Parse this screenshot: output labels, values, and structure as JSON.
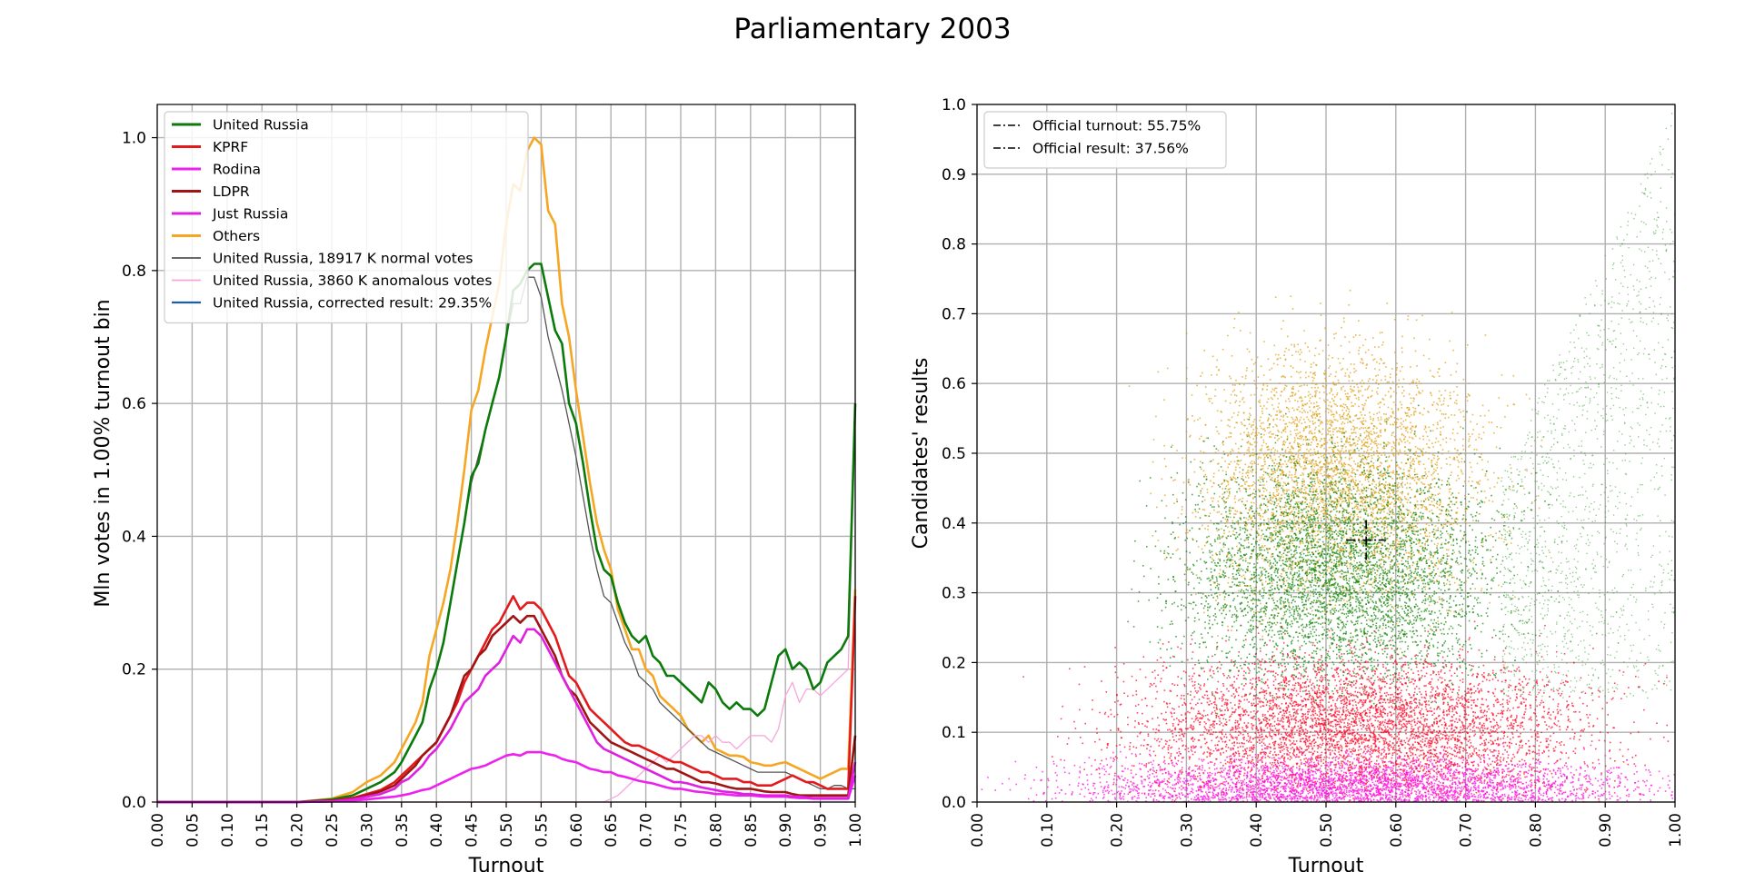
{
  "title": "Parliamentary 2003",
  "chart_data": [
    {
      "type": "line",
      "xlabel": "Turnout",
      "ylabel": "Mln votes in 1.00% turnout bin",
      "xlim": [
        0,
        1
      ],
      "ylim": [
        0,
        1.05
      ],
      "x_ticks": [
        "0.00",
        "0.05",
        "0.10",
        "0.15",
        "0.20",
        "0.25",
        "0.30",
        "0.35",
        "0.40",
        "0.45",
        "0.50",
        "0.55",
        "0.60",
        "0.65",
        "0.70",
        "0.75",
        "0.80",
        "0.85",
        "0.90",
        "0.95",
        "1.00"
      ],
      "y_ticks": [
        "0.0",
        "0.2",
        "0.4",
        "0.6",
        "0.8",
        "1.0"
      ],
      "x": [
        0.0,
        0.05,
        0.1,
        0.15,
        0.2,
        0.25,
        0.28,
        0.3,
        0.32,
        0.34,
        0.35,
        0.36,
        0.37,
        0.38,
        0.39,
        0.4,
        0.41,
        0.42,
        0.43,
        0.44,
        0.45,
        0.46,
        0.47,
        0.48,
        0.49,
        0.5,
        0.51,
        0.52,
        0.53,
        0.54,
        0.55,
        0.56,
        0.57,
        0.58,
        0.59,
        0.6,
        0.61,
        0.62,
        0.63,
        0.64,
        0.65,
        0.66,
        0.67,
        0.68,
        0.69,
        0.7,
        0.71,
        0.72,
        0.73,
        0.74,
        0.75,
        0.76,
        0.77,
        0.78,
        0.79,
        0.8,
        0.81,
        0.82,
        0.83,
        0.84,
        0.85,
        0.86,
        0.87,
        0.88,
        0.89,
        0.9,
        0.91,
        0.92,
        0.93,
        0.94,
        0.95,
        0.96,
        0.97,
        0.98,
        0.99,
        1.0
      ],
      "series": [
        {
          "name": "Others",
          "color": "#f5a623",
          "width": 2.6,
          "values": [
            0,
            0,
            0,
            0,
            0,
            0.005,
            0.015,
            0.03,
            0.04,
            0.06,
            0.08,
            0.1,
            0.12,
            0.15,
            0.22,
            0.26,
            0.3,
            0.35,
            0.42,
            0.5,
            0.59,
            0.62,
            0.68,
            0.73,
            0.78,
            0.87,
            0.93,
            0.92,
            0.98,
            1.0,
            0.99,
            0.89,
            0.87,
            0.75,
            0.7,
            0.62,
            0.55,
            0.48,
            0.42,
            0.38,
            0.35,
            0.29,
            0.26,
            0.23,
            0.23,
            0.2,
            0.19,
            0.16,
            0.15,
            0.14,
            0.13,
            0.11,
            0.1,
            0.09,
            0.1,
            0.08,
            0.075,
            0.07,
            0.07,
            0.068,
            0.06,
            0.058,
            0.055,
            0.055,
            0.058,
            0.06,
            0.055,
            0.05,
            0.045,
            0.04,
            0.035,
            0.04,
            0.045,
            0.05,
            0.05,
            0.32
          ]
        },
        {
          "name": "United Russia, 18917 K normal votes",
          "color": "#555555",
          "width": 1.3,
          "values": [
            0,
            0,
            0,
            0,
            0,
            0.004,
            0.01,
            0.02,
            0.03,
            0.045,
            0.06,
            0.08,
            0.1,
            0.12,
            0.17,
            0.2,
            0.24,
            0.3,
            0.36,
            0.42,
            0.48,
            0.52,
            0.56,
            0.6,
            0.64,
            0.7,
            0.75,
            0.75,
            0.79,
            0.79,
            0.76,
            0.7,
            0.66,
            0.62,
            0.57,
            0.52,
            0.46,
            0.4,
            0.35,
            0.31,
            0.3,
            0.27,
            0.24,
            0.22,
            0.19,
            0.18,
            0.17,
            0.15,
            0.14,
            0.13,
            0.12,
            0.11,
            0.1,
            0.09,
            0.08,
            0.075,
            0.07,
            0.065,
            0.06,
            0.055,
            0.05,
            0.045,
            0.045,
            0.045,
            0.045,
            0.045,
            0.04,
            0.035,
            0.03,
            0.025,
            0.02,
            0.02,
            0.025,
            0.025,
            0.02,
            0.02
          ]
        },
        {
          "name": "United Russia, 3860 K anomalous votes",
          "color": "#f7a6d9",
          "width": 1.3,
          "values": [
            0,
            0,
            0,
            0,
            0,
            0,
            0,
            0,
            0,
            0,
            0,
            0,
            0,
            0,
            0,
            0,
            0,
            0,
            0,
            0,
            0,
            0,
            0,
            0,
            0,
            0,
            0,
            0,
            0,
            0,
            0,
            0,
            0,
            0,
            0,
            0,
            0,
            0,
            0,
            0,
            0.005,
            0.01,
            0.02,
            0.03,
            0.04,
            0.05,
            0.06,
            0.07,
            0.06,
            0.07,
            0.08,
            0.09,
            0.1,
            0.1,
            0.09,
            0.1,
            0.09,
            0.09,
            0.08,
            0.09,
            0.1,
            0.1,
            0.1,
            0.09,
            0.11,
            0.16,
            0.18,
            0.15,
            0.17,
            0.17,
            0.16,
            0.17,
            0.18,
            0.19,
            0.2,
            0.58
          ]
        },
        {
          "name": "United Russia",
          "color": "#0b7a0b",
          "width": 2.6,
          "values": [
            0,
            0,
            0,
            0,
            0,
            0.004,
            0.01,
            0.02,
            0.03,
            0.045,
            0.06,
            0.08,
            0.1,
            0.12,
            0.17,
            0.2,
            0.24,
            0.3,
            0.36,
            0.42,
            0.49,
            0.51,
            0.56,
            0.6,
            0.64,
            0.7,
            0.77,
            0.78,
            0.8,
            0.81,
            0.81,
            0.76,
            0.71,
            0.69,
            0.6,
            0.57,
            0.51,
            0.44,
            0.38,
            0.35,
            0.34,
            0.3,
            0.27,
            0.25,
            0.24,
            0.25,
            0.22,
            0.21,
            0.19,
            0.19,
            0.18,
            0.17,
            0.16,
            0.15,
            0.18,
            0.17,
            0.15,
            0.14,
            0.15,
            0.14,
            0.14,
            0.13,
            0.14,
            0.18,
            0.22,
            0.23,
            0.2,
            0.21,
            0.2,
            0.17,
            0.18,
            0.21,
            0.22,
            0.23,
            0.25,
            0.6
          ]
        },
        {
          "name": "KPRF",
          "color": "#e31a1c",
          "width": 2.6,
          "values": [
            0,
            0,
            0,
            0,
            0,
            0.002,
            0.006,
            0.012,
            0.018,
            0.03,
            0.04,
            0.05,
            0.06,
            0.07,
            0.08,
            0.09,
            0.11,
            0.13,
            0.15,
            0.18,
            0.2,
            0.22,
            0.24,
            0.26,
            0.27,
            0.29,
            0.31,
            0.29,
            0.3,
            0.3,
            0.29,
            0.27,
            0.25,
            0.22,
            0.19,
            0.18,
            0.16,
            0.14,
            0.13,
            0.12,
            0.11,
            0.1,
            0.09,
            0.085,
            0.085,
            0.08,
            0.075,
            0.07,
            0.065,
            0.06,
            0.06,
            0.055,
            0.05,
            0.045,
            0.045,
            0.04,
            0.035,
            0.035,
            0.035,
            0.03,
            0.03,
            0.025,
            0.025,
            0.025,
            0.03,
            0.035,
            0.04,
            0.035,
            0.03,
            0.03,
            0.025,
            0.02,
            0.02,
            0.02,
            0.02,
            0.31
          ]
        },
        {
          "name": "LDPR",
          "color": "#a01414",
          "width": 2.6,
          "values": [
            0,
            0,
            0,
            0,
            0,
            0.002,
            0.005,
            0.01,
            0.016,
            0.025,
            0.035,
            0.045,
            0.055,
            0.07,
            0.08,
            0.09,
            0.11,
            0.13,
            0.16,
            0.19,
            0.2,
            0.22,
            0.23,
            0.25,
            0.26,
            0.27,
            0.28,
            0.27,
            0.28,
            0.28,
            0.26,
            0.24,
            0.22,
            0.19,
            0.17,
            0.16,
            0.14,
            0.12,
            0.11,
            0.1,
            0.09,
            0.085,
            0.08,
            0.075,
            0.07,
            0.065,
            0.06,
            0.055,
            0.05,
            0.05,
            0.045,
            0.04,
            0.035,
            0.03,
            0.03,
            0.028,
            0.025,
            0.022,
            0.02,
            0.02,
            0.02,
            0.018,
            0.016,
            0.015,
            0.015,
            0.015,
            0.012,
            0.01,
            0.01,
            0.01,
            0.01,
            0.01,
            0.01,
            0.01,
            0.01,
            0.1
          ]
        },
        {
          "name": "Rodina",
          "color": "#ee22ee",
          "width": 2.6,
          "values": [
            0,
            0,
            0,
            0,
            0,
            0.001,
            0.002,
            0.004,
            0.006,
            0.008,
            0.01,
            0.012,
            0.015,
            0.018,
            0.02,
            0.025,
            0.03,
            0.035,
            0.04,
            0.045,
            0.05,
            0.052,
            0.055,
            0.06,
            0.065,
            0.07,
            0.072,
            0.07,
            0.075,
            0.075,
            0.075,
            0.072,
            0.07,
            0.065,
            0.062,
            0.06,
            0.055,
            0.05,
            0.048,
            0.045,
            0.045,
            0.04,
            0.038,
            0.035,
            0.032,
            0.03,
            0.028,
            0.025,
            0.022,
            0.02,
            0.02,
            0.018,
            0.016,
            0.015,
            0.014,
            0.012,
            0.012,
            0.011,
            0.01,
            0.01,
            0.01,
            0.009,
            0.008,
            0.008,
            0.008,
            0.008,
            0.007,
            0.006,
            0.006,
            0.005,
            0.005,
            0.005,
            0.005,
            0.005,
            0.005,
            0.04
          ]
        },
        {
          "name": "Just Russia",
          "color": "#e020e0",
          "width": 2.6,
          "values": [
            0,
            0,
            0,
            0,
            0,
            0.001,
            0.004,
            0.008,
            0.012,
            0.02,
            0.03,
            0.035,
            0.045,
            0.055,
            0.07,
            0.08,
            0.095,
            0.11,
            0.13,
            0.15,
            0.16,
            0.17,
            0.19,
            0.2,
            0.21,
            0.23,
            0.25,
            0.24,
            0.26,
            0.26,
            0.25,
            0.23,
            0.21,
            0.19,
            0.17,
            0.15,
            0.13,
            0.11,
            0.09,
            0.08,
            0.075,
            0.07,
            0.065,
            0.06,
            0.055,
            0.05,
            0.045,
            0.04,
            0.035,
            0.03,
            0.03,
            0.028,
            0.025,
            0.022,
            0.02,
            0.018,
            0.016,
            0.015,
            0.014,
            0.012,
            0.012,
            0.011,
            0.01,
            0.01,
            0.01,
            0.01,
            0.008,
            0.008,
            0.007,
            0.006,
            0.006,
            0.006,
            0.006,
            0.006,
            0.006,
            0.06
          ]
        }
      ],
      "legend": {
        "position": "upper-left",
        "entries": [
          {
            "label": "United Russia",
            "color": "#0b7a0b",
            "width": 2.6
          },
          {
            "label": "KPRF",
            "color": "#e31a1c",
            "width": 2.6
          },
          {
            "label": "Rodina",
            "color": "#ee22ee",
            "width": 2.6
          },
          {
            "label": "LDPR",
            "color": "#a01414",
            "width": 2.6
          },
          {
            "label": "Just Russia",
            "color": "#e020e0",
            "width": 2.6
          },
          {
            "label": "Others",
            "color": "#f5a623",
            "width": 2.6
          },
          {
            "label": "United Russia, 18917 K normal votes",
            "color": "#555555",
            "width": 1.3
          },
          {
            "label": "United Russia, 3860 K anomalous votes",
            "color": "#f7a6d9",
            "width": 1.3
          },
          {
            "label": "United Russia, corrected result: 29.35%",
            "color": "#1f5fa0",
            "width": 1.8
          }
        ]
      }
    },
    {
      "type": "scatter",
      "xlabel": "Turnout",
      "ylabel": "Candidates' results",
      "xlim": [
        0,
        1
      ],
      "ylim": [
        0,
        1
      ],
      "x_ticks": [
        "0.00",
        "0.10",
        "0.20",
        "0.30",
        "0.40",
        "0.50",
        "0.60",
        "0.70",
        "0.80",
        "0.90",
        "1.00"
      ],
      "y_ticks": [
        "0.0",
        "0.1",
        "0.2",
        "0.3",
        "0.4",
        "0.5",
        "0.6",
        "0.7",
        "0.8",
        "0.9",
        "1.0"
      ],
      "clouds": [
        {
          "name": "Others",
          "color": "#e0a018",
          "center": [
            0.52,
            0.47
          ],
          "spread": [
            0.1,
            0.09
          ]
        },
        {
          "name": "United Russia",
          "color": "#1a8a10",
          "center": [
            0.52,
            0.33
          ],
          "spread": [
            0.11,
            0.08
          ]
        },
        {
          "name": "KPRF",
          "color": "#ff0a2a",
          "center": [
            0.55,
            0.11
          ],
          "spread": [
            0.16,
            0.05
          ]
        },
        {
          "name": "Rodina / Just Russia",
          "color": "#ff10e0",
          "center": [
            0.55,
            0.025
          ],
          "spread": [
            0.2,
            0.02
          ]
        }
      ],
      "official_marker": {
        "turnout": 0.5575,
        "result": 0.3756
      },
      "legend": {
        "position": "upper-left",
        "entries": [
          {
            "label": "Official turnout: 55.75%"
          },
          {
            "label": "Official result: 37.56%"
          }
        ]
      }
    }
  ]
}
